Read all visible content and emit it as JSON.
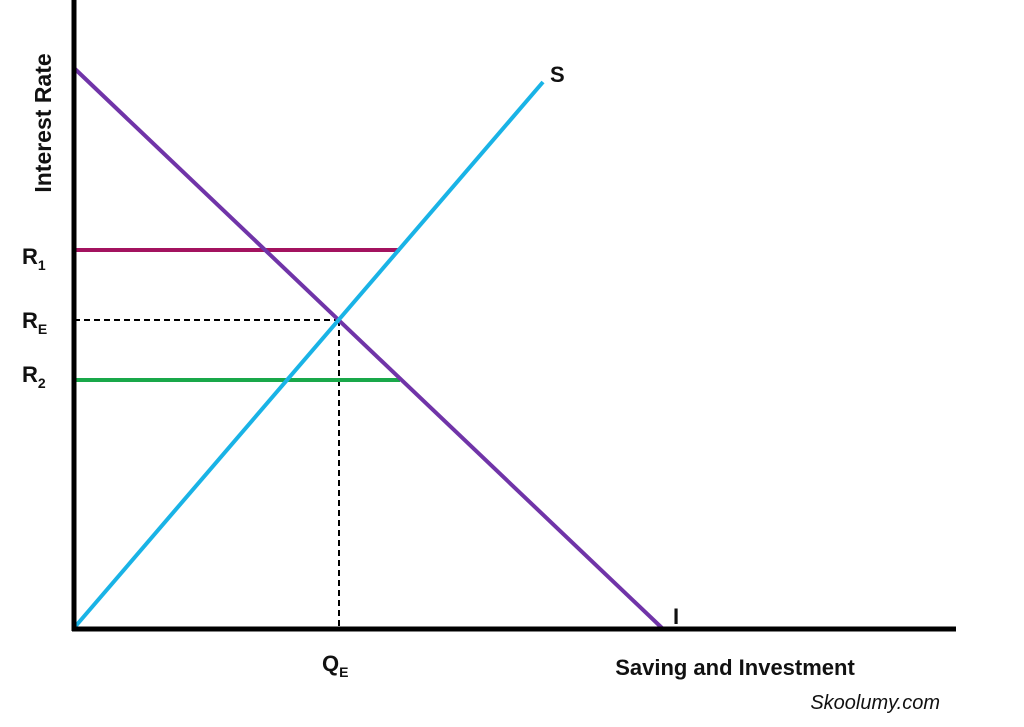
{
  "axes": {
    "y_label": "Interest Rate",
    "x_label": "Saving and Investment"
  },
  "curves": {
    "saving": {
      "label": "S",
      "color": "#19b3e6"
    },
    "investment": {
      "label": "I",
      "color": "#7034a8"
    }
  },
  "rates": {
    "r1": {
      "base": "R",
      "sub": "1",
      "color": "#a3135f"
    },
    "re": {
      "base": "R",
      "sub": "E"
    },
    "r2": {
      "base": "R",
      "sub": "2",
      "color": "#19a84a"
    }
  },
  "quantity": {
    "base": "Q",
    "sub": "E"
  },
  "watermark": "Skoolumy.com"
}
